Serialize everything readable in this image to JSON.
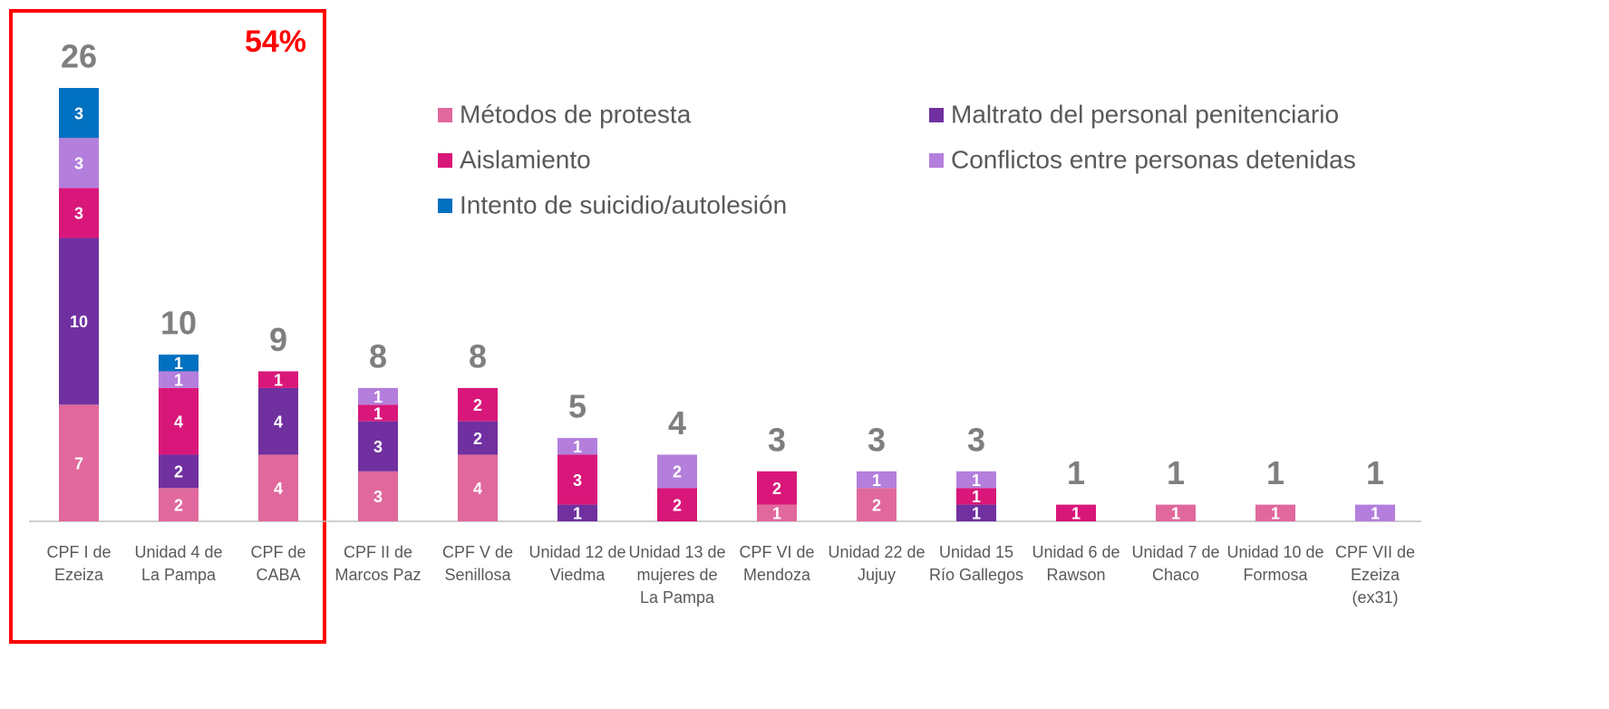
{
  "chart_data": {
    "type": "stacked_bar",
    "annotation": "54%",
    "categories": [
      "CPF I de Ezeiza",
      "Unidad 4 de La Pampa",
      "CPF de CABA",
      "CPF II de Marcos Paz",
      "CPF V de Senillosa",
      "Unidad 12 de Viedma",
      "Unidad 13 de mujeres de La Pampa",
      "CPF VI de Mendoza",
      "Unidad 22 de Jujuy",
      "Unidad 15 Río Gallegos",
      "Unidad 6 de Rawson",
      "Unidad 7 de Chaco",
      "Unidad 10 de Formosa",
      "CPF VII de Ezeiza (ex31)"
    ],
    "series": [
      {
        "name": "Métodos de protesta",
        "color": "#e0689d",
        "values": [
          7,
          2,
          4,
          3,
          4,
          null,
          null,
          1,
          2,
          null,
          null,
          1,
          1,
          null
        ]
      },
      {
        "name": "Maltrato del personal penitenciario",
        "color": "#7030a0",
        "values": [
          10,
          2,
          4,
          3,
          2,
          1,
          null,
          null,
          null,
          1,
          null,
          null,
          null,
          null
        ]
      },
      {
        "name": "Aislamiento",
        "color": "#d9177a",
        "values": [
          3,
          4,
          1,
          1,
          2,
          3,
          2,
          2,
          null,
          1,
          1,
          null,
          null,
          null
        ]
      },
      {
        "name": "Conflictos entre personas detenidas",
        "color": "#b47fdc",
        "values": [
          3,
          1,
          null,
          1,
          null,
          1,
          2,
          null,
          1,
          1,
          null,
          null,
          null,
          1
        ]
      },
      {
        "name": "Intento de suicidio/autolesión",
        "color": "#0070c0",
        "values": [
          3,
          1,
          null,
          null,
          null,
          null,
          null,
          null,
          null,
          null,
          null,
          null,
          null,
          null
        ]
      }
    ],
    "totals": [
      26,
      10,
      9,
      8,
      8,
      5,
      4,
      3,
      3,
      3,
      1,
      1,
      1,
      1
    ]
  }
}
